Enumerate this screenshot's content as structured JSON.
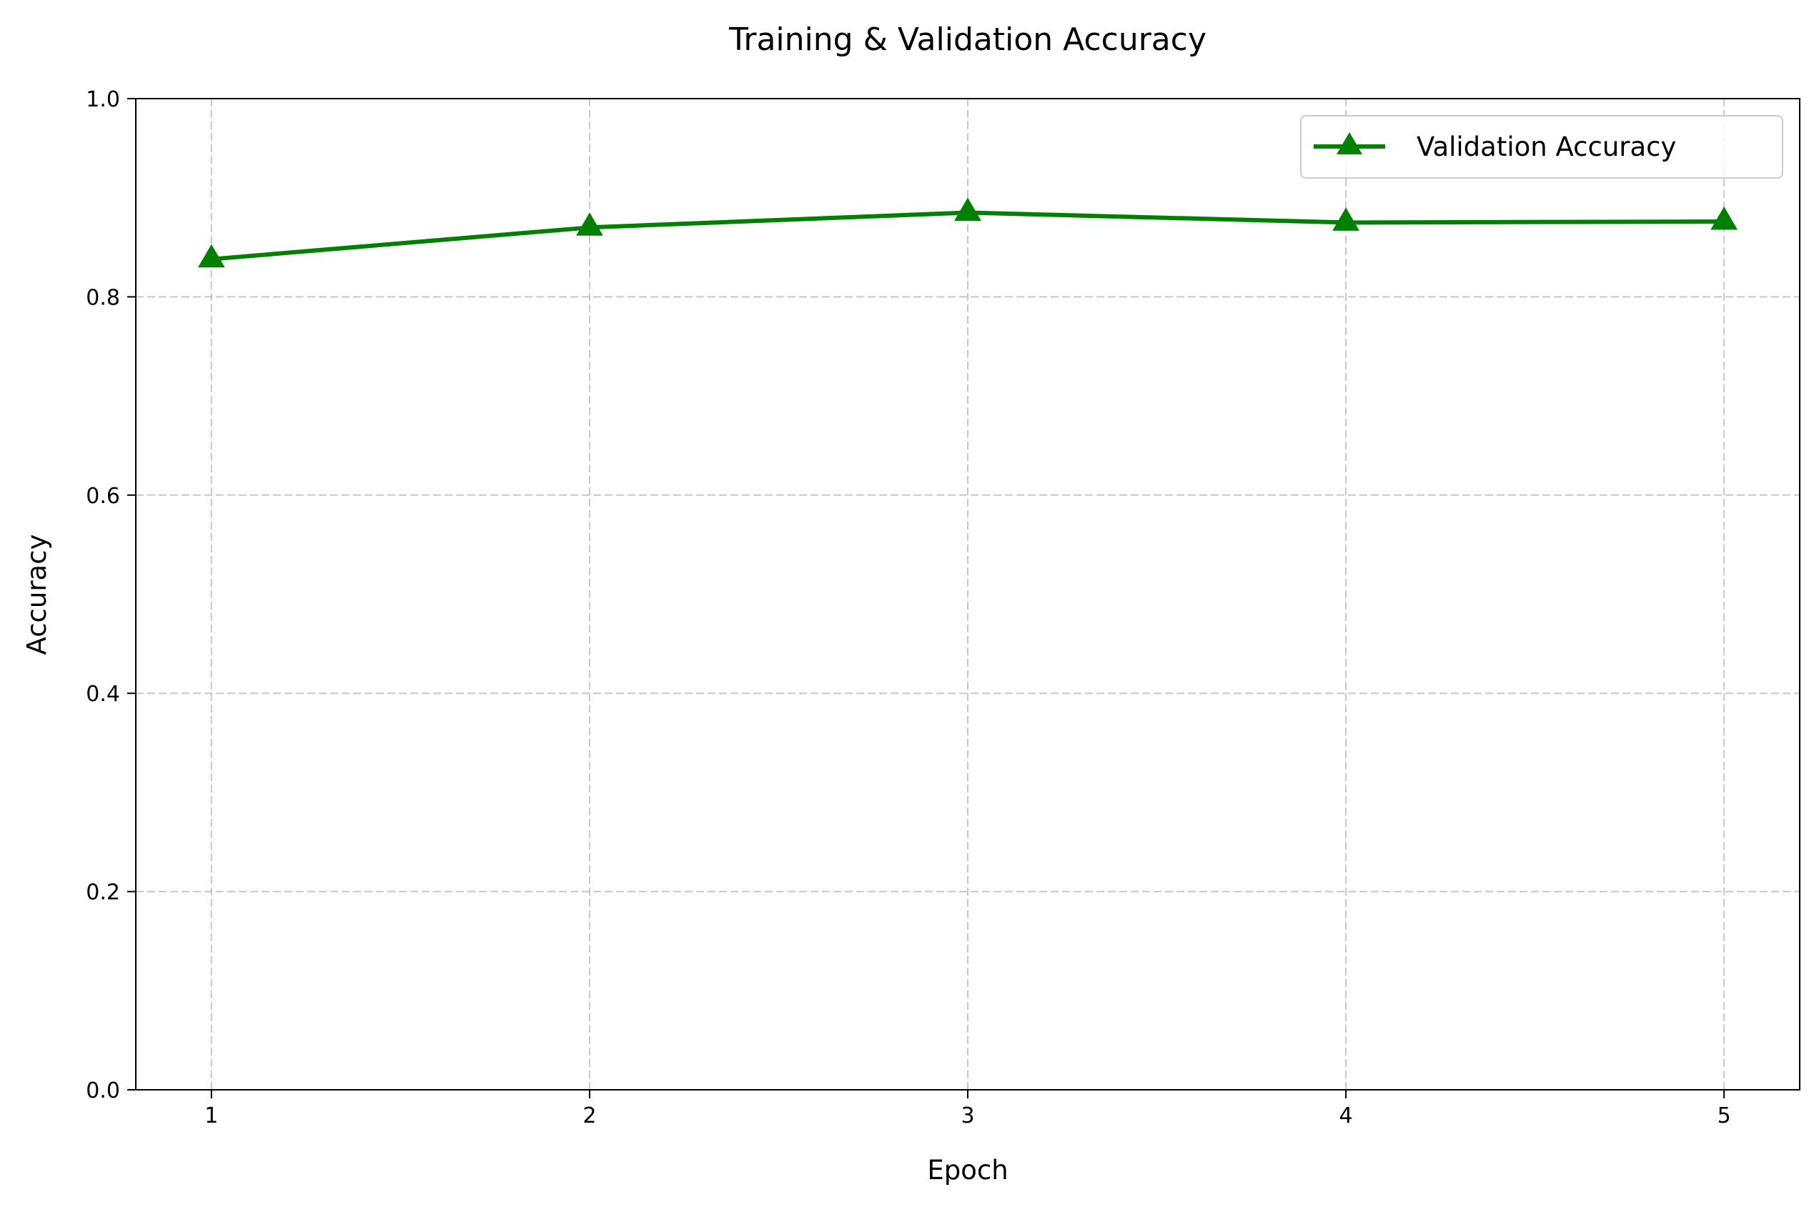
{
  "chart_data": {
    "type": "line",
    "title": "Training & Validation Accuracy",
    "xlabel": "Epoch",
    "ylabel": "Accuracy",
    "x": [
      1,
      2,
      3,
      4,
      5
    ],
    "xlim": [
      0.8,
      5.2
    ],
    "ylim": [
      0,
      1.0
    ],
    "xticks": [
      1,
      2,
      3,
      4,
      5
    ],
    "yticks": [
      0.0,
      0.2,
      0.4,
      0.6,
      0.8,
      1.0
    ],
    "xtick_labels": [
      "1",
      "2",
      "3",
      "4",
      "5"
    ],
    "ytick_labels": [
      "0.0",
      "0.2",
      "0.4",
      "0.6",
      "0.8",
      "1.0"
    ],
    "grid": true,
    "legend_position": "top-right",
    "series": [
      {
        "name": "Validation Accuracy",
        "values": [
          0.838,
          0.87,
          0.885,
          0.875,
          0.876
        ],
        "color": "#008000",
        "marker": "triangle-up"
      }
    ]
  }
}
